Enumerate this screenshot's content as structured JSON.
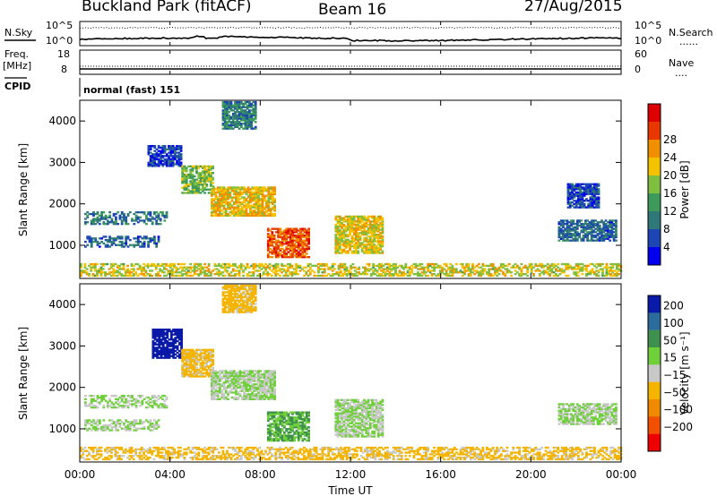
{
  "header": {
    "station": "Buckland Park (fitACF)",
    "beam": "Beam 16",
    "date": "27/Aug/2015"
  },
  "noise_panel": {
    "left_label": "N.Sky",
    "right_label": "N.Search",
    "right_dots": "......",
    "y_ticks": [
      "10^5",
      "10^0"
    ]
  },
  "freq_panel": {
    "label_line1": "Freq.",
    "label_line2": "[MHz]",
    "y_ticks": [
      "18",
      "8"
    ],
    "right_label": "Nave",
    "right_dots": "....",
    "right_ticks": [
      "60",
      "0"
    ]
  },
  "cpid": {
    "label": "CPID",
    "mode": "normal (fast) 151"
  },
  "chart_data": [
    {
      "type": "heatmap",
      "name": "power",
      "ylabel": "Slant Range [km]",
      "ylim": [
        200,
        4500
      ],
      "y_ticks": [
        "1000",
        "2000",
        "3000",
        "4000"
      ],
      "colorbar_label": "Power [dB]",
      "colorbar_ticks": [
        "4",
        "8",
        "12",
        "16",
        "20",
        "24",
        "28"
      ],
      "colors": [
        "#0000ee",
        "#1c46b4",
        "#2f7878",
        "#3c9a5a",
        "#7fbf3f",
        "#f5c200",
        "#f09000",
        "#e83800",
        "#dd0000"
      ],
      "regions": [
        {
          "t0": 0.2,
          "t1": 3.8,
          "r0": 1500,
          "r1": 1800,
          "v": 10
        },
        {
          "t0": 0.2,
          "t1": 3.5,
          "r0": 950,
          "r1": 1200,
          "v": 9
        },
        {
          "t0": 3.0,
          "t1": 4.5,
          "r0": 2900,
          "r1": 3400,
          "v": 6
        },
        {
          "t0": 4.5,
          "t1": 5.9,
          "r0": 2250,
          "r1": 2900,
          "v": 16
        },
        {
          "t0": 5.8,
          "t1": 8.6,
          "r0": 1700,
          "r1": 2400,
          "v": 21
        },
        {
          "t0": 6.3,
          "t1": 7.8,
          "r0": 3800,
          "r1": 4450,
          "v": 11
        },
        {
          "t0": 8.3,
          "t1": 10.1,
          "r0": 700,
          "r1": 1400,
          "v": 26
        },
        {
          "t0": 11.3,
          "t1": 13.4,
          "r0": 800,
          "r1": 1700,
          "v": 20
        },
        {
          "t0": 21.2,
          "t1": 23.8,
          "r0": 1100,
          "r1": 1600,
          "v": 9
        },
        {
          "t0": 21.6,
          "t1": 23.0,
          "r0": 1900,
          "r1": 2500,
          "v": 7
        },
        {
          "t0": 0.0,
          "t1": 24.0,
          "r0": 250,
          "r1": 550,
          "v": 19
        }
      ]
    },
    {
      "type": "heatmap",
      "name": "velocity",
      "ylabel": "Slant Range [km]",
      "ylim": [
        200,
        4500
      ],
      "y_ticks": [
        "1000",
        "2000",
        "3000",
        "4000"
      ],
      "x_ticks": [
        "00:00",
        "04:00",
        "08:00",
        "12:00",
        "16:00",
        "20:00",
        "00:00"
      ],
      "xlabel": "Time UT",
      "colorbar_label": "Velocity [m s⁻¹]",
      "colorbar_ticks": [
        "200",
        "100",
        "50",
        "15",
        "−15",
        "−50",
        "−100",
        "−200"
      ],
      "colors": [
        "#0a1aa8",
        "#2c6c9c",
        "#3f8f4f",
        "#6fd03a",
        "#c8c8c8",
        "#f5b400",
        "#f08a00",
        "#f05000",
        "#ee0000"
      ],
      "regions": [
        {
          "t0": 0.2,
          "t1": 3.8,
          "r0": 1500,
          "r1": 1800,
          "v": 0
        },
        {
          "t0": 0.2,
          "t1": 3.5,
          "r0": 950,
          "r1": 1200,
          "v": 0
        },
        {
          "t0": 3.2,
          "t1": 4.5,
          "r0": 2700,
          "r1": 3400,
          "v": 180
        },
        {
          "t0": 4.5,
          "t1": 5.9,
          "r0": 2250,
          "r1": 2900,
          "v": -40
        },
        {
          "t0": 5.8,
          "t1": 8.6,
          "r0": 1700,
          "r1": 2400,
          "v": 0
        },
        {
          "t0": 6.3,
          "t1": 7.8,
          "r0": 3800,
          "r1": 4450,
          "v": -45
        },
        {
          "t0": 8.3,
          "t1": 10.1,
          "r0": 700,
          "r1": 1400,
          "v": 30
        },
        {
          "t0": 11.3,
          "t1": 13.4,
          "r0": 800,
          "r1": 1700,
          "v": 0
        },
        {
          "t0": 21.2,
          "t1": 23.8,
          "r0": 1100,
          "r1": 1600,
          "v": 0
        },
        {
          "t0": 0.0,
          "t1": 24.0,
          "r0": 250,
          "r1": 550,
          "v": -40
        }
      ]
    }
  ]
}
